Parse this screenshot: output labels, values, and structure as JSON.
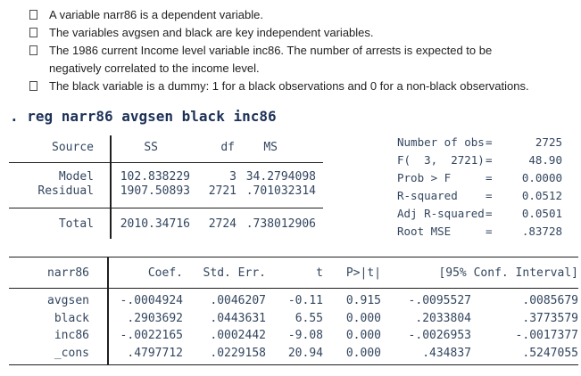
{
  "colors": {
    "command_text": "#1d3157",
    "output_text": "#33465f",
    "body_text": "#1f1f1f",
    "rule": "#1f1f1f",
    "background": "#ffffff"
  },
  "bullets": [
    {
      "lines": [
        "A variable narr86 is a dependent variable."
      ]
    },
    {
      "lines": [
        "The variables avgsen and black are key independent variables."
      ]
    },
    {
      "lines": [
        "The 1986 current Income level variable inc86. The number of arrests is expected to be",
        "negatively correlated to the income level."
      ]
    },
    {
      "lines": [
        "The black variable is a dummy: 1 for a black observations and 0 for a non-black observations."
      ]
    }
  ],
  "command": ". reg narr86 avgsen black inc86",
  "anova": {
    "headers": {
      "source": "Source",
      "ss": "SS",
      "df": "df",
      "ms": "MS"
    },
    "rows": [
      {
        "source": "Model",
        "ss": "102.838229",
        "df": "3",
        "ms": "34.2794098"
      },
      {
        "source": "Residual",
        "ss": "1907.50893",
        "df": "2721",
        "ms": ".701032314"
      }
    ],
    "total": {
      "source": "Total",
      "ss": "2010.34716",
      "df": "2724",
      "ms": ".738012906"
    }
  },
  "stats": {
    "rows": [
      {
        "label": "Number of obs",
        "eq": "=",
        "value": "2725"
      },
      {
        "label": "F(  3,  2721)",
        "eq": "=",
        "value": "48.90"
      },
      {
        "label": "Prob > F",
        "eq": "=",
        "value": "0.0000"
      },
      {
        "label": "R-squared",
        "eq": "=",
        "value": "0.0512"
      },
      {
        "label": "Adj R-squared",
        "eq": "=",
        "value": "0.0501"
      },
      {
        "label": "Root MSE",
        "eq": "=",
        "value": ".83728"
      }
    ]
  },
  "coef_table": {
    "headers": {
      "depvar": "narr86",
      "coef": "Coef.",
      "stderr": "Std. Err.",
      "t": "t",
      "p": "P>|t|",
      "ci": "[95% Conf. Interval]"
    },
    "rows": [
      {
        "name": "avgsen",
        "coef": "-.0004924",
        "stderr": ".0046207",
        "t": "-0.11",
        "p": "0.915",
        "ci_low": "-.0095527",
        "ci_high": ".0085679"
      },
      {
        "name": "black",
        "coef": ".2903692",
        "stderr": ".0443631",
        "t": "6.55",
        "p": "0.000",
        "ci_low": ".2033804",
        "ci_high": ".3773579"
      },
      {
        "name": "inc86",
        "coef": "-.0022165",
        "stderr": ".0002442",
        "t": "-9.08",
        "p": "0.000",
        "ci_low": "-.0026953",
        "ci_high": "-.0017377"
      },
      {
        "name": "_cons",
        "coef": ".4797712",
        "stderr": ".0229158",
        "t": "20.94",
        "p": "0.000",
        "ci_low": ".434837",
        "ci_high": ".5247055"
      }
    ]
  }
}
